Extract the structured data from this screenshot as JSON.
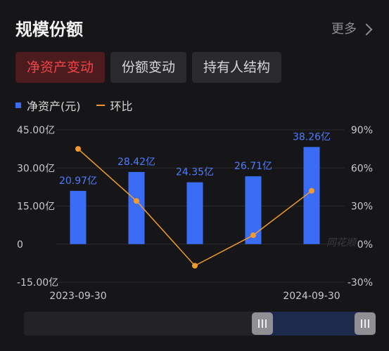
{
  "header": {
    "title": "规模份额",
    "more_label": "更多"
  },
  "tabs": [
    {
      "label": "净资产变动",
      "active": true
    },
    {
      "label": "份额变动",
      "active": false
    },
    {
      "label": "持有人结构",
      "active": false
    }
  ],
  "legend": {
    "bar_label": "净资产(元)",
    "line_label": "环比"
  },
  "watermark": "同花顺",
  "chart_data": {
    "type": "bar",
    "categories": [
      "2023-09-30",
      "",
      "",
      "",
      "2024-09-30"
    ],
    "x_tick_labels": [
      "2023-09-30",
      "2024-09-30"
    ],
    "series": [
      {
        "name": "净资产(元)",
        "type": "bar",
        "values": [
          20.97,
          28.42,
          24.35,
          26.71,
          38.26
        ],
        "value_labels": [
          "20.97亿",
          "28.42亿",
          "24.35亿",
          "26.71亿",
          "38.26亿"
        ],
        "color": "#3a6cf6"
      },
      {
        "name": "环比",
        "type": "line",
        "values": [
          75,
          34,
          -17,
          7,
          42
        ],
        "color": "#f29b2c"
      }
    ],
    "y_left": {
      "ticks": [
        45,
        30,
        15,
        0,
        -15
      ],
      "tick_labels": [
        "45.00亿",
        "30.00亿",
        "15.00亿",
        "0",
        "-15.00亿"
      ],
      "range": [
        -15,
        45
      ]
    },
    "y_right": {
      "ticks": [
        90,
        60,
        30,
        0,
        -30
      ],
      "tick_labels": [
        "90%",
        "60%",
        "30%",
        "0%",
        "-30%"
      ],
      "range": [
        -30,
        90
      ]
    }
  }
}
